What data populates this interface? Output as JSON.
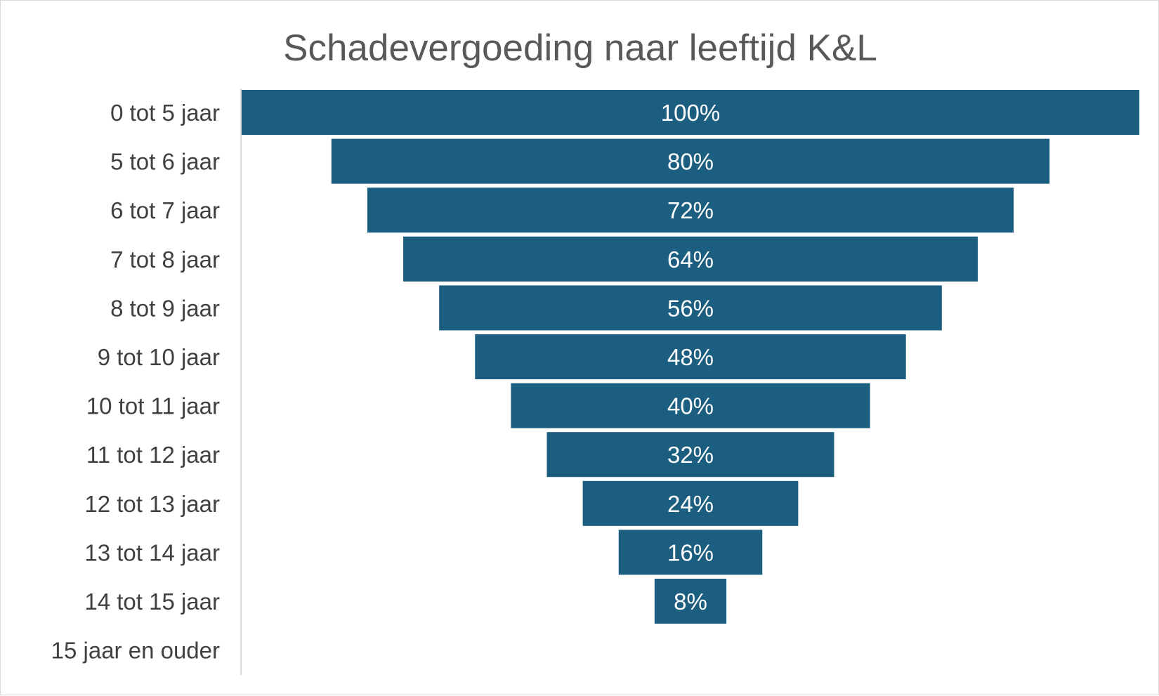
{
  "chart_data": {
    "type": "bar",
    "subtype": "funnel",
    "title": "Schadevergoeding naar leeftijd K&L",
    "categories": [
      "0 tot 5 jaar",
      "5 tot 6 jaar",
      "6 tot 7 jaar",
      "7 tot 8 jaar",
      "8 tot 9 jaar",
      "9 tot 10 jaar",
      "10 tot 11 jaar",
      "11 tot 12 jaar",
      "12 tot 13 jaar",
      "13 tot 14 jaar",
      "14 tot 15 jaar",
      "15 jaar en ouder"
    ],
    "values": [
      100,
      80,
      72,
      64,
      56,
      48,
      40,
      32,
      24,
      16,
      8,
      0
    ],
    "data_labels": [
      "100%",
      "80%",
      "72%",
      "64%",
      "56%",
      "48%",
      "40%",
      "32%",
      "24%",
      "16%",
      "8%",
      ""
    ],
    "value_unit": "%",
    "xlim": [
      0,
      100
    ],
    "bar_color": "#1b5e80",
    "xlabel": "",
    "ylabel": "",
    "grid": false,
    "legend": "none"
  }
}
